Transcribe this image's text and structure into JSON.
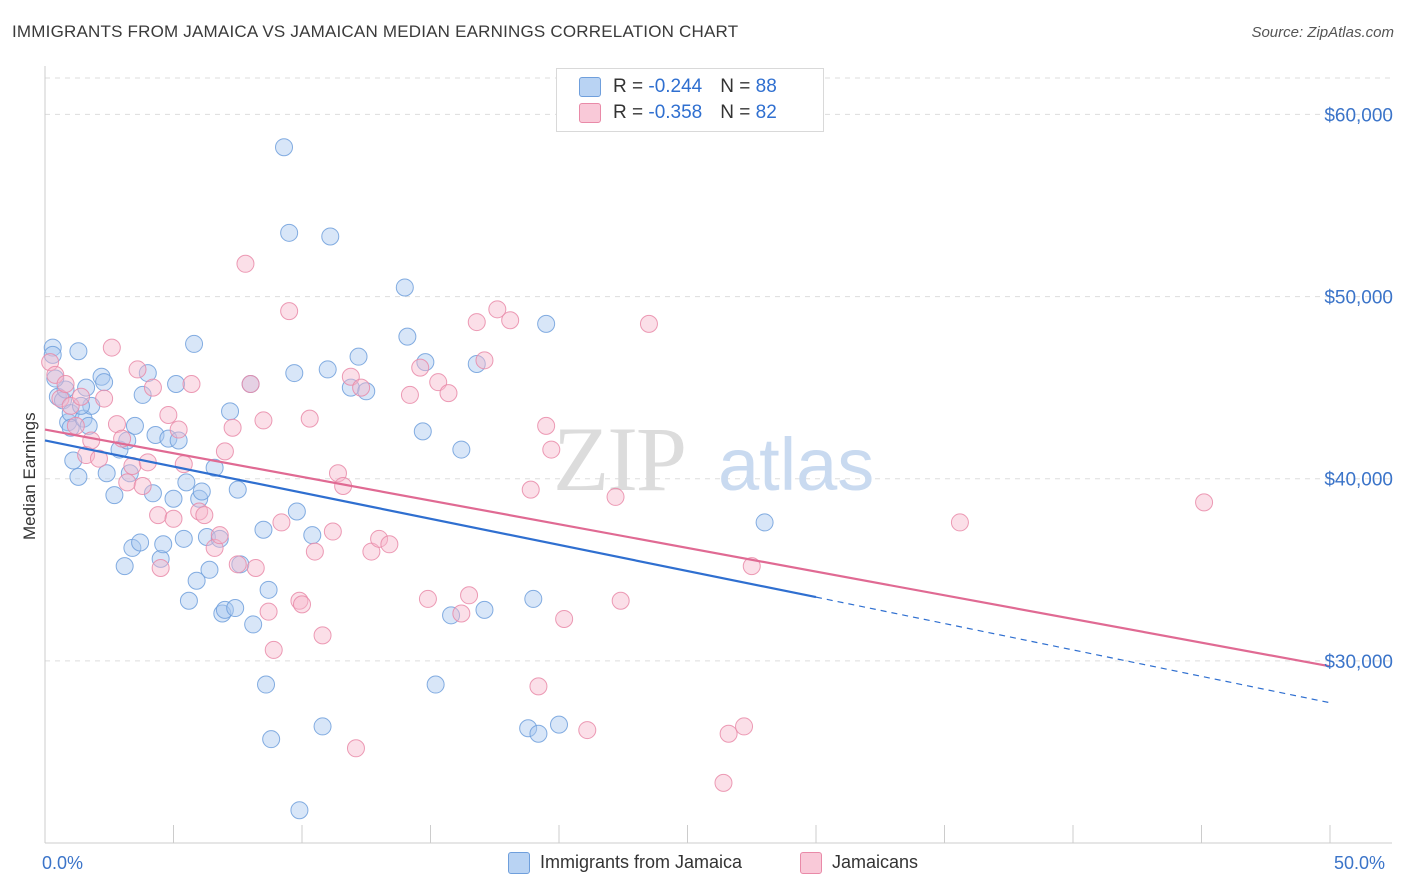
{
  "title": "IMMIGRANTS FROM JAMAICA VS JAMAICAN MEDIAN EARNINGS CORRELATION CHART",
  "source": "Source: ZipAtlas.com",
  "watermark": "ZIPatlas",
  "legend": {
    "rows": [
      {
        "r_label": "R = ",
        "r_value": "-0.244",
        "n_label": "N = ",
        "n_value": "88"
      },
      {
        "r_label": "R = ",
        "r_value": "-0.358",
        "n_label": "N = ",
        "n_value": "82"
      }
    ]
  },
  "bottom_legend": [
    "Immigrants from Jamaica",
    "Jamaicans"
  ],
  "axis": {
    "x_min_label": "0.0%",
    "x_max_label": "50.0%",
    "ylabel": "Median Earnings",
    "y_ticks": [
      "$60,000",
      "$50,000",
      "$40,000",
      "$30,000"
    ]
  },
  "colors": {
    "blue_fill": "#a9c8f0",
    "blue_stroke": "#6f9fdc",
    "blue_line": "#2f6fd0",
    "pink_fill": "#f6b9cc",
    "pink_stroke": "#e98aa8",
    "pink_line": "#e06a93",
    "tick_label": "#3b74c9"
  },
  "chart_data": {
    "type": "scatter",
    "xlim": [
      0,
      50
    ],
    "ylim": [
      20000,
      62000
    ],
    "y_ticks": [
      30000,
      40000,
      50000,
      60000
    ],
    "grid": true,
    "series": [
      {
        "name": "Immigrants from Jamaica",
        "trend": {
          "x0": 0,
          "y0": 42100,
          "x1": 30,
          "y1": 33500,
          "dashed_to_x": 50,
          "dashed_to_y": 27700
        },
        "points": [
          [
            0.3,
            47200
          ],
          [
            0.3,
            46800
          ],
          [
            0.5,
            44500
          ],
          [
            0.7,
            44300
          ],
          [
            0.8,
            44900
          ],
          [
            0.9,
            43100
          ],
          [
            1.0,
            43600
          ],
          [
            1.0,
            42800
          ],
          [
            1.1,
            41000
          ],
          [
            1.3,
            47000
          ],
          [
            1.3,
            40100
          ],
          [
            1.5,
            43300
          ],
          [
            1.6,
            45000
          ],
          [
            1.7,
            42900
          ],
          [
            1.8,
            44000
          ],
          [
            2.2,
            45600
          ],
          [
            2.3,
            45300
          ],
          [
            2.7,
            39100
          ],
          [
            2.9,
            41600
          ],
          [
            3.1,
            35200
          ],
          [
            3.2,
            42100
          ],
          [
            3.3,
            40300
          ],
          [
            3.4,
            36200
          ],
          [
            3.5,
            42900
          ],
          [
            3.7,
            36500
          ],
          [
            3.8,
            44600
          ],
          [
            4.0,
            45800
          ],
          [
            4.2,
            39200
          ],
          [
            4.3,
            42400
          ],
          [
            4.5,
            35600
          ],
          [
            4.6,
            36400
          ],
          [
            4.8,
            42200
          ],
          [
            5.0,
            38900
          ],
          [
            5.1,
            45200
          ],
          [
            5.2,
            42100
          ],
          [
            5.4,
            36700
          ],
          [
            5.5,
            39800
          ],
          [
            5.6,
            33300
          ],
          [
            5.8,
            47400
          ],
          [
            5.9,
            34400
          ],
          [
            6.0,
            38900
          ],
          [
            6.1,
            39300
          ],
          [
            6.3,
            36800
          ],
          [
            6.4,
            35000
          ],
          [
            6.6,
            40600
          ],
          [
            6.8,
            36700
          ],
          [
            6.9,
            32600
          ],
          [
            7.0,
            32800
          ],
          [
            7.2,
            43700
          ],
          [
            7.4,
            32900
          ],
          [
            7.5,
            39400
          ],
          [
            7.6,
            35300
          ],
          [
            8.0,
            45200
          ],
          [
            8.1,
            32000
          ],
          [
            8.5,
            37200
          ],
          [
            8.6,
            28700
          ],
          [
            8.7,
            33900
          ],
          [
            8.8,
            25700
          ],
          [
            9.3,
            58200
          ],
          [
            9.5,
            53500
          ],
          [
            9.7,
            45800
          ],
          [
            9.8,
            38200
          ],
          [
            9.9,
            21800
          ],
          [
            10.4,
            36900
          ],
          [
            10.8,
            26400
          ],
          [
            11.0,
            46000
          ],
          [
            11.1,
            53300
          ],
          [
            11.9,
            45000
          ],
          [
            12.2,
            46700
          ],
          [
            12.5,
            44800
          ],
          [
            14.0,
            50500
          ],
          [
            14.1,
            47800
          ],
          [
            14.7,
            42600
          ],
          [
            14.8,
            46400
          ],
          [
            15.2,
            28700
          ],
          [
            15.8,
            32500
          ],
          [
            16.2,
            41600
          ],
          [
            16.8,
            46300
          ],
          [
            17.1,
            32800
          ],
          [
            18.8,
            26300
          ],
          [
            19.0,
            33400
          ],
          [
            19.2,
            26000
          ],
          [
            19.5,
            48500
          ],
          [
            20.0,
            26500
          ],
          [
            28.0,
            37600
          ],
          [
            0.4,
            45500
          ],
          [
            1.4,
            44000
          ],
          [
            2.4,
            40300
          ]
        ]
      },
      {
        "name": "Jamaicans",
        "trend": {
          "x0": 0,
          "y0": 42700,
          "x1": 50,
          "y1": 29700
        },
        "points": [
          [
            0.2,
            46400
          ],
          [
            0.4,
            45700
          ],
          [
            0.6,
            44400
          ],
          [
            0.8,
            45200
          ],
          [
            1.0,
            44000
          ],
          [
            1.2,
            42900
          ],
          [
            1.4,
            44500
          ],
          [
            1.6,
            41300
          ],
          [
            1.8,
            42100
          ],
          [
            2.1,
            41100
          ],
          [
            2.3,
            44400
          ],
          [
            2.6,
            47200
          ],
          [
            2.8,
            43000
          ],
          [
            3.0,
            42200
          ],
          [
            3.2,
            39800
          ],
          [
            3.4,
            40700
          ],
          [
            3.6,
            46000
          ],
          [
            3.8,
            39600
          ],
          [
            4.0,
            40900
          ],
          [
            4.2,
            45000
          ],
          [
            4.4,
            38000
          ],
          [
            4.5,
            35100
          ],
          [
            4.8,
            43500
          ],
          [
            5.0,
            37800
          ],
          [
            5.2,
            42700
          ],
          [
            5.4,
            40800
          ],
          [
            5.7,
            45200
          ],
          [
            6.0,
            38200
          ],
          [
            6.2,
            38000
          ],
          [
            6.6,
            36200
          ],
          [
            6.8,
            36900
          ],
          [
            7.0,
            41500
          ],
          [
            7.3,
            42800
          ],
          [
            7.5,
            35300
          ],
          [
            7.8,
            51800
          ],
          [
            8.0,
            45200
          ],
          [
            8.2,
            35100
          ],
          [
            8.5,
            43200
          ],
          [
            8.7,
            32700
          ],
          [
            8.9,
            30600
          ],
          [
            9.2,
            37600
          ],
          [
            9.5,
            49200
          ],
          [
            9.9,
            33300
          ],
          [
            10.0,
            33100
          ],
          [
            10.3,
            43300
          ],
          [
            10.5,
            36000
          ],
          [
            10.8,
            31400
          ],
          [
            11.2,
            37100
          ],
          [
            11.4,
            40300
          ],
          [
            11.6,
            39600
          ],
          [
            11.9,
            45600
          ],
          [
            12.1,
            25200
          ],
          [
            12.3,
            45000
          ],
          [
            12.7,
            36000
          ],
          [
            13.0,
            36700
          ],
          [
            13.4,
            36400
          ],
          [
            14.2,
            44600
          ],
          [
            14.6,
            46100
          ],
          [
            14.9,
            33400
          ],
          [
            15.3,
            45300
          ],
          [
            15.7,
            44700
          ],
          [
            16.2,
            32600
          ],
          [
            16.5,
            33600
          ],
          [
            16.8,
            48600
          ],
          [
            17.1,
            46500
          ],
          [
            17.6,
            49300
          ],
          [
            18.1,
            48700
          ],
          [
            18.9,
            39400
          ],
          [
            19.2,
            28600
          ],
          [
            19.5,
            42900
          ],
          [
            19.7,
            41600
          ],
          [
            20.2,
            32300
          ],
          [
            21.1,
            26200
          ],
          [
            22.2,
            39000
          ],
          [
            22.4,
            33300
          ],
          [
            23.5,
            48500
          ],
          [
            26.4,
            23300
          ],
          [
            26.6,
            26000
          ],
          [
            27.2,
            26400
          ],
          [
            27.5,
            35200
          ],
          [
            35.6,
            37600
          ],
          [
            45.1,
            38700
          ]
        ]
      }
    ]
  }
}
